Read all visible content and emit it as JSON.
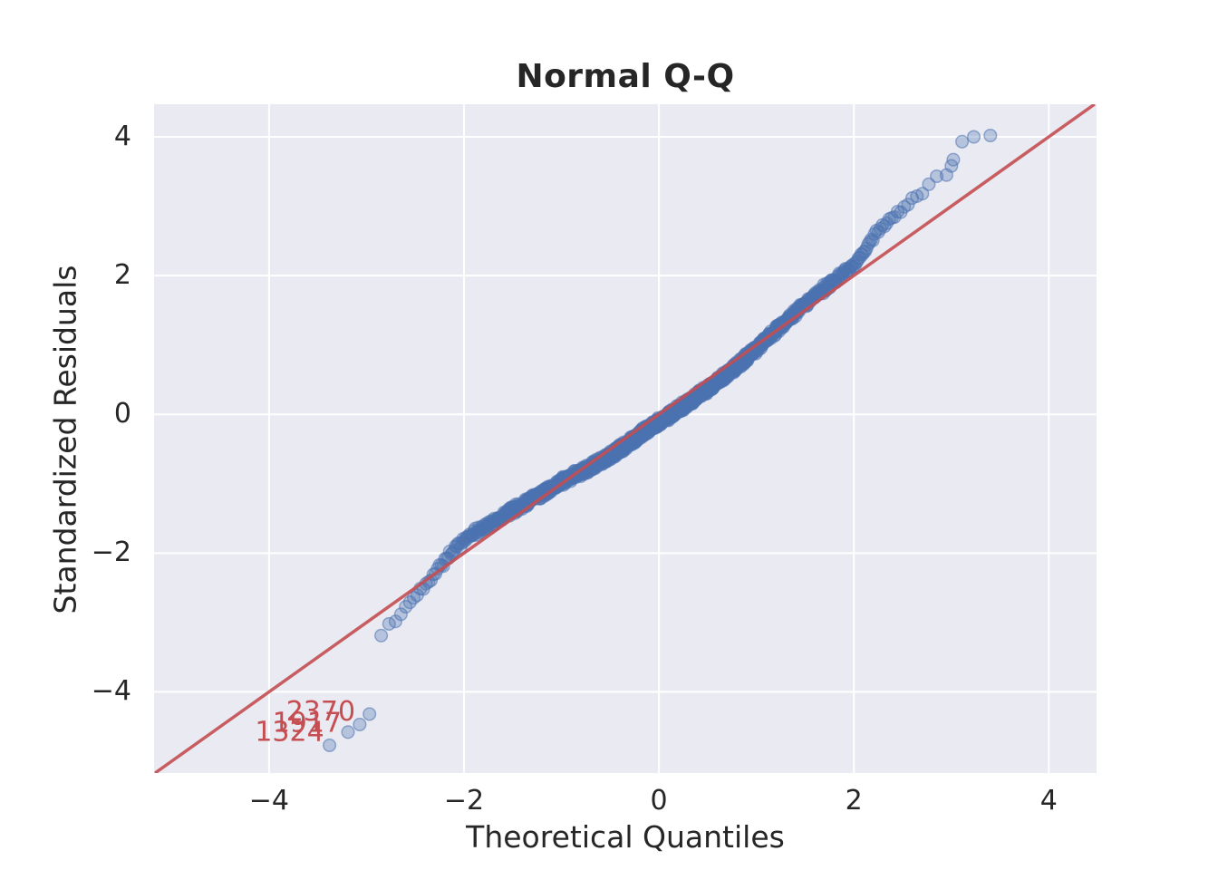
{
  "chart_data": {
    "type": "scatter",
    "title": "Normal Q-Q",
    "xlabel": "Theoretical Quantiles",
    "ylabel": "Standardized Residuals",
    "xlim": [
      -5.18,
      4.49
    ],
    "ylim": [
      -5.17,
      4.47
    ],
    "x_ticks": {
      "values": [
        -4,
        -2,
        0,
        2,
        4
      ],
      "labels": [
        "−4",
        "−2",
        "0",
        "2",
        "4"
      ]
    },
    "y_ticks": {
      "values": [
        -4,
        -2,
        0,
        2,
        4
      ],
      "labels": [
        "−4",
        "−2",
        "0",
        "2",
        "4"
      ]
    },
    "grid": true,
    "legend": false,
    "colors": {
      "plot_background": "#eaeaf2",
      "grid": "#ffffff",
      "points": "#4c72b0",
      "reference_line": "#c44e52",
      "annotation": "#c44e52",
      "text": "#262626"
    },
    "n_points": 1600,
    "series": [
      {
        "name": "standardized-residuals-vs-theoretical-quantiles",
        "curve_anchors": [
          [
            -2.92,
            -3.32
          ],
          [
            -2.8,
            -3.1
          ],
          [
            -2.7,
            -2.96
          ],
          [
            -2.6,
            -2.8
          ],
          [
            -2.5,
            -2.62
          ],
          [
            -2.4,
            -2.45
          ],
          [
            -2.3,
            -2.28
          ],
          [
            -2.2,
            -2.1
          ],
          [
            -2.05,
            -1.87
          ],
          [
            -1.9,
            -1.72
          ],
          [
            -1.7,
            -1.55
          ],
          [
            -1.5,
            -1.38
          ],
          [
            -1.3,
            -1.22
          ],
          [
            -1.1,
            -1.06
          ],
          [
            -0.9,
            -0.9
          ],
          [
            -0.7,
            -0.76
          ],
          [
            -0.5,
            -0.6
          ],
          [
            -0.3,
            -0.4
          ],
          [
            -0.1,
            -0.2
          ],
          [
            0.1,
            -0.02
          ],
          [
            0.3,
            0.17
          ],
          [
            0.5,
            0.37
          ],
          [
            0.7,
            0.58
          ],
          [
            0.9,
            0.82
          ],
          [
            1.1,
            1.08
          ],
          [
            1.3,
            1.33
          ],
          [
            1.5,
            1.6
          ],
          [
            1.7,
            1.82
          ],
          [
            1.85,
            1.98
          ],
          [
            2.0,
            2.15
          ],
          [
            2.1,
            2.34
          ],
          [
            2.2,
            2.56
          ],
          [
            2.3,
            2.72
          ],
          [
            2.42,
            2.88
          ],
          [
            2.55,
            3.05
          ],
          [
            2.7,
            3.22
          ],
          [
            2.8,
            3.32
          ],
          [
            2.9,
            3.42
          ]
        ],
        "low_outliers": [
          [
            -3.38,
            -4.77
          ],
          [
            -3.19,
            -4.58
          ],
          [
            -3.07,
            -4.47
          ],
          [
            -2.97,
            -4.32
          ]
        ],
        "high_outliers": [
          [
            2.95,
            3.45
          ],
          [
            3.0,
            3.58
          ],
          [
            3.02,
            3.67
          ],
          [
            3.11,
            3.93
          ],
          [
            3.23,
            4.0
          ],
          [
            3.4,
            4.02
          ]
        ]
      }
    ],
    "reference_line": {
      "type": "identity-45-degree",
      "x0": -5.17,
      "y0": -5.17,
      "x1": 4.47,
      "y1": 4.47
    },
    "annotations": [
      {
        "text": "2370",
        "x": -3.47,
        "y": -4.29
      },
      {
        "text": "1917",
        "x": -3.61,
        "y": -4.45
      },
      {
        "text": "1324",
        "x": -3.79,
        "y": -4.58
      }
    ]
  }
}
